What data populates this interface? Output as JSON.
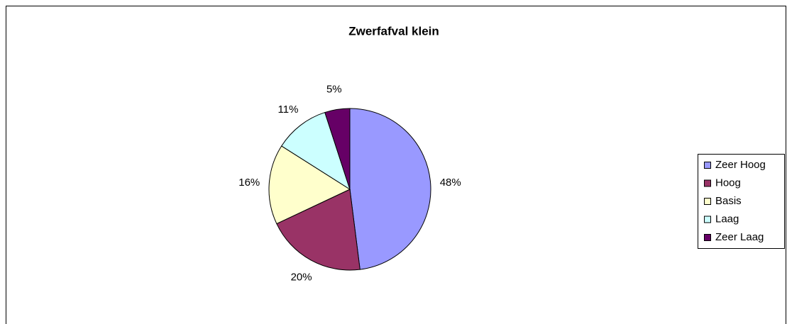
{
  "chart_data": {
    "type": "pie",
    "title": "Zwerfafval klein",
    "categories": [
      "Zeer Hoog",
      "Hoog",
      "Basis",
      "Laag",
      "Zeer Laag"
    ],
    "values": [
      48,
      20,
      16,
      11,
      5
    ],
    "value_labels": [
      "48%",
      "20%",
      "16%",
      "11%",
      "5%"
    ],
    "colors": [
      "#9999ff",
      "#993366",
      "#ffffcc",
      "#ccffff",
      "#660066"
    ],
    "legend": "right"
  }
}
